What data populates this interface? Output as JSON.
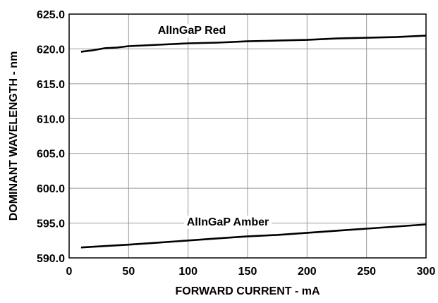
{
  "chart_data": {
    "type": "line",
    "xlabel": "FORWARD CURRENT - mA",
    "ylabel": "DOMINANT WAVELENGTH - nm",
    "xlim": [
      0,
      300
    ],
    "ylim": [
      590.0,
      625.0
    ],
    "x_ticks": [
      "0",
      "50",
      "100",
      "150",
      "200",
      "250",
      "300"
    ],
    "y_ticks": [
      "625.0",
      "620.0",
      "615.0",
      "610.0",
      "605.0",
      "600.0",
      "595.0",
      "590.0"
    ],
    "grid": true,
    "series": [
      {
        "name": "AlInGaP Red",
        "x": [
          10,
          20,
          30,
          40,
          50,
          75,
          100,
          125,
          150,
          175,
          200,
          225,
          250,
          275,
          300
        ],
        "y": [
          619.6,
          619.8,
          620.1,
          620.2,
          620.4,
          620.6,
          620.8,
          620.9,
          621.1,
          621.2,
          621.3,
          621.5,
          621.6,
          621.7,
          621.9
        ]
      },
      {
        "name": "AlInGaP Amber",
        "x": [
          10,
          20,
          30,
          40,
          50,
          75,
          100,
          125,
          150,
          175,
          200,
          225,
          250,
          275,
          300
        ],
        "y": [
          591.5,
          591.6,
          591.7,
          591.8,
          591.9,
          592.2,
          592.5,
          592.8,
          593.1,
          593.3,
          593.6,
          593.9,
          594.2,
          594.5,
          594.8
        ]
      }
    ]
  }
}
